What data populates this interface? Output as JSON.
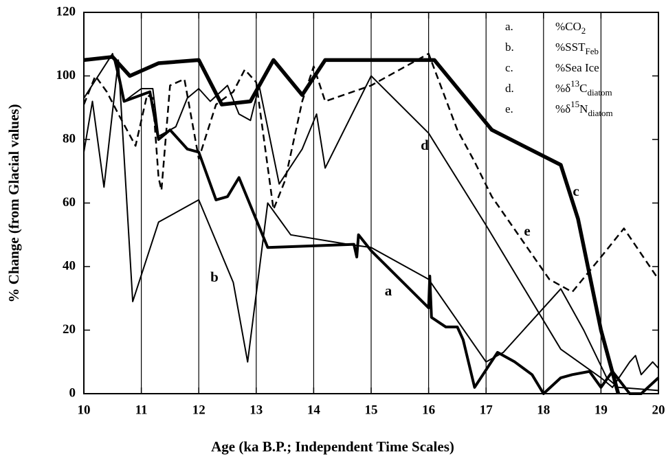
{
  "chart_data": {
    "type": "line",
    "x_label": "Age (ka B.P.; Independent Time Scales)",
    "y_label": "%  Change (from Glacial values)",
    "xlim": [
      10,
      20
    ],
    "xticks": [
      10,
      11,
      12,
      13,
      14,
      15,
      16,
      17,
      18,
      19,
      20
    ],
    "ylim": [
      0,
      120
    ],
    "yticks": [
      0,
      20,
      40,
      60,
      80,
      100,
      120
    ],
    "grid": "x",
    "series": [
      {
        "legend_letter": "a.",
        "label": "a",
        "name": [
          {
            "text": "%CO"
          },
          {
            "text": "2",
            "shift": "sub"
          }
        ],
        "color": "#000",
        "width": 4,
        "dash": false,
        "x": [
          10.55,
          10.7,
          11.15,
          11.3,
          11.5,
          11.8,
          12.0,
          12.3,
          12.5,
          12.7,
          13.2,
          14.7,
          14.75,
          14.78,
          15.0,
          16.0,
          16.02,
          16.05,
          16.3,
          16.5,
          16.6,
          16.8,
          17.2,
          17.5,
          17.8,
          18.0,
          18.3,
          18.5,
          18.8,
          19.0,
          19.2,
          19.5,
          19.7,
          20.0
        ],
        "values": [
          105,
          92,
          95,
          80,
          83,
          77,
          76,
          61,
          62,
          68,
          46,
          47,
          43,
          50,
          45,
          27,
          37,
          24,
          21,
          21,
          17,
          2,
          13,
          10,
          6,
          0,
          5,
          6,
          7,
          2,
          7,
          0,
          0,
          5
        ]
      },
      {
        "legend_letter": "b.",
        "label": "b",
        "name": [
          {
            "text": "%SST"
          },
          {
            "text": "Feb",
            "shift": "sub"
          }
        ],
        "color": "#000",
        "width": 2,
        "dash": false,
        "x": [
          10.0,
          10.15,
          10.35,
          10.6,
          10.85,
          11.3,
          12.0,
          12.6,
          12.85,
          13.2,
          13.6,
          14.6,
          15.0,
          16.0,
          17.0,
          17.3,
          18.3,
          18.7,
          19.1,
          19.3,
          20.0
        ],
        "values": [
          76,
          92,
          65,
          105,
          29,
          54,
          61,
          35,
          10,
          60,
          50,
          47,
          46,
          36,
          10,
          13,
          33,
          20,
          5,
          2,
          1
        ]
      },
      {
        "legend_letter": "c.",
        "label": "c",
        "name": [
          {
            "text": "%Sea Ice"
          }
        ],
        "color": "#000",
        "width": 5.5,
        "dash": false,
        "x": [
          10.0,
          10.5,
          10.8,
          11.3,
          12.0,
          12.4,
          12.9,
          13.3,
          13.8,
          14.2,
          16.1,
          17.1,
          18.3,
          18.6,
          19.0,
          19.3
        ],
        "values": [
          105,
          106,
          100,
          104,
          105,
          91,
          92,
          105,
          94,
          105,
          105,
          83,
          72,
          55,
          20,
          0
        ]
      },
      {
        "legend_letter": "d.",
        "label": "d",
        "name": [
          {
            "text": "%δ"
          },
          {
            "text": "13",
            "shift": "sup"
          },
          {
            "text": "C"
          },
          {
            "text": "diatom",
            "shift": "sub"
          }
        ],
        "color": "#000",
        "width": 2,
        "dash": false,
        "x": [
          10.0,
          10.5,
          10.7,
          11.0,
          11.2,
          11.3,
          11.6,
          11.8,
          12.0,
          12.2,
          12.5,
          12.7,
          12.9,
          13.05,
          13.4,
          13.8,
          14.05,
          14.2,
          15.0,
          16.0,
          17.0,
          18.3,
          19.0,
          19.2,
          19.5,
          19.6,
          19.7,
          19.9,
          20.0
        ],
        "values": [
          93,
          107,
          92,
          96,
          96,
          81,
          84,
          93,
          96,
          92,
          97,
          88,
          86,
          97,
          66,
          77,
          88,
          71,
          100,
          82,
          53,
          14,
          5,
          2,
          10,
          12,
          6,
          10,
          8
        ]
      },
      {
        "legend_letter": "e.",
        "label": "e",
        "name": [
          {
            "text": "%δ"
          },
          {
            "text": "15",
            "shift": "sup"
          },
          {
            "text": "N"
          },
          {
            "text": "diatom",
            "shift": "sub"
          }
        ],
        "color": "#000",
        "width": 2.5,
        "dash": true,
        "x": [
          10.0,
          10.2,
          10.4,
          10.6,
          10.9,
          11.1,
          11.2,
          11.3,
          11.35,
          11.5,
          11.75,
          12.0,
          12.3,
          12.6,
          12.8,
          13.0,
          13.3,
          13.5,
          13.8,
          14.0,
          14.2,
          15.0,
          16.0,
          16.5,
          16.8,
          17.1,
          18.1,
          18.5,
          19.0,
          19.4,
          20.0
        ],
        "values": [
          91,
          100,
          95,
          88,
          78,
          94,
          93,
          68,
          64,
          97,
          99,
          74,
          91,
          95,
          102,
          98,
          58,
          67,
          92,
          103,
          92,
          97,
          107,
          83,
          73,
          62,
          36,
          32,
          43,
          52,
          36
        ]
      }
    ]
  }
}
